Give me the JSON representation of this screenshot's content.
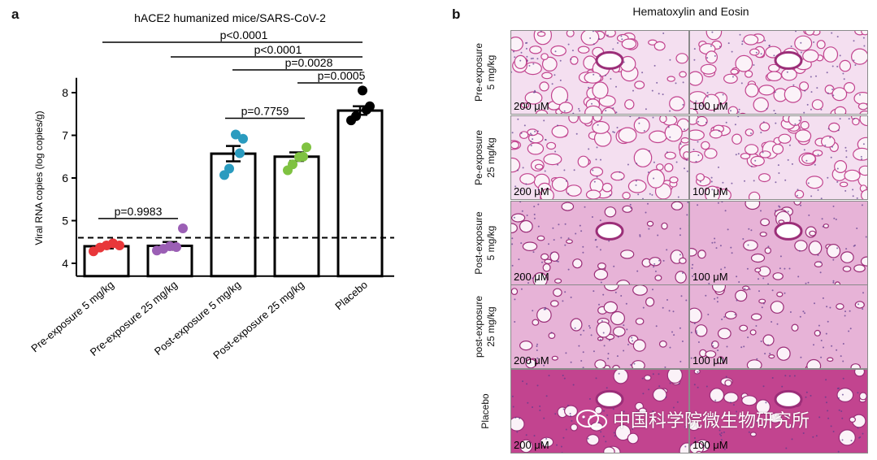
{
  "panel_a": {
    "letter": "a"
  },
  "panel_b": {
    "letter": "b",
    "title": "Hematoxylin and Eosin"
  },
  "chart_data": {
    "type": "bar",
    "title": "hACE2 humanized mice/SARS-CoV-2",
    "ylabel": "Viral RNA copies (log copies/g)",
    "xlabel": "",
    "ylim": [
      3.7,
      8.5
    ],
    "yticks": [
      4,
      5,
      6,
      7,
      8
    ],
    "detection_limit": 4.6,
    "categories": [
      "Pre-exposure 5 mg/kg",
      "Pre-exposure 25 mg/kg",
      "Post-exposure 5 mg/kg",
      "Post-exposure 25 mg/kg",
      "Placebo"
    ],
    "means": [
      4.4,
      4.41,
      6.57,
      6.5,
      7.58
    ],
    "sem": [
      0.05,
      0.09,
      0.18,
      0.1,
      0.1
    ],
    "colors": [
      "#e8373a",
      "#9b5fb5",
      "#2a9bbf",
      "#7fc241",
      "#000000"
    ],
    "points": [
      [
        4.28,
        4.37,
        4.42,
        4.47,
        4.42
      ],
      [
        4.3,
        4.34,
        4.4,
        4.38,
        4.82
      ],
      [
        6.07,
        6.22,
        6.58,
        6.92,
        7.02
      ],
      [
        6.18,
        6.32,
        6.5,
        6.72,
        6.49
      ],
      [
        7.35,
        7.45,
        7.6,
        7.68,
        8.05
      ]
    ],
    "comparisons": [
      {
        "label": "p=0.9983",
        "from": 0,
        "to": 1
      },
      {
        "label": "p=0.7759",
        "from": 2,
        "to": 3
      },
      {
        "label": "p<0.0001",
        "from": 0,
        "to": 4
      },
      {
        "label": "p<0.0001",
        "from": 1,
        "to": 4
      },
      {
        "label": "p=0.0028",
        "from": 2,
        "to": 4
      },
      {
        "label": "p=0.0005",
        "from": 3,
        "to": 4
      }
    ]
  },
  "histology": {
    "rows": [
      {
        "line1": "Pre-exposure",
        "line2": "5 mg/kg"
      },
      {
        "line1": "Pe-exposure",
        "line2": "25 mg/kg"
      },
      {
        "line1": "Post-exposure",
        "line2": "5 mg/kg"
      },
      {
        "line1": "post-exposure",
        "line2": "25 mg/kg"
      },
      {
        "line1": "Placebo",
        "line2": ""
      }
    ],
    "scale_left": "200 μM",
    "scale_right": "100 μM",
    "stain_colors": {
      "background": "#f4dff0",
      "tissue": "#c2448f",
      "dense": "#9b2e78",
      "nucleus": "#5b3a8c"
    }
  },
  "watermark": {
    "text": "中国科学院微生物研究所"
  }
}
